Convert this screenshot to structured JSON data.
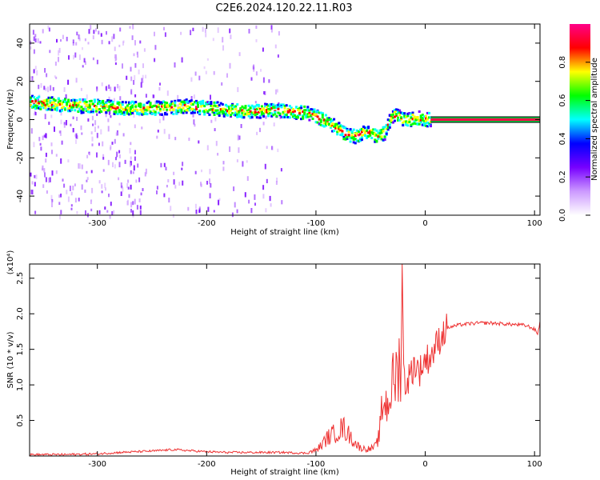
{
  "title": "C2E6.2024.120.22.11.R03",
  "chart_data": [
    {
      "type": "heatmap",
      "xlabel": "Height of straight line (km)",
      "ylabel": "Frequency (Hz)",
      "xlim": [
        -362,
        105
      ],
      "ylim": [
        -50,
        50
      ],
      "xticks": [
        -300,
        -200,
        -100,
        0,
        100
      ],
      "yticks": [
        -40,
        -20,
        0,
        20,
        40
      ],
      "grid": false,
      "ridge": {
        "x": [
          -360,
          -340,
          -320,
          -300,
          -280,
          -260,
          -240,
          -220,
          -200,
          -180,
          -160,
          -140,
          -120,
          -105,
          -95,
          -85,
          -75,
          -65,
          -55,
          -45,
          -38,
          -32,
          -28,
          -22,
          -15,
          -8,
          0,
          5,
          105
        ],
        "y": [
          9,
          8,
          7,
          7,
          6,
          6,
          6,
          7,
          6,
          5,
          4,
          5,
          4,
          3,
          0,
          -3,
          -7,
          -9,
          -6,
          -9,
          -7,
          1,
          3,
          0,
          0,
          1,
          0,
          0,
          0
        ]
      },
      "colorbar": {
        "label": "Normalized spectral amplitude",
        "range": [
          0.0,
          1.0
        ],
        "ticks": [
          0.0,
          0.2,
          0.4,
          0.6,
          0.8
        ],
        "colors": [
          "#ffffff",
          "#cc99ff",
          "#7700ff",
          "#0000ff",
          "#00ffff",
          "#00ff00",
          "#ffff00",
          "#ff0000",
          "#ff0088"
        ]
      }
    },
    {
      "type": "line",
      "xlabel": "Height of straight line (km)",
      "ylabel": "SNR (10 * v/v)",
      "yscale_label": "(x10⁴)",
      "xlim": [
        -362,
        105
      ],
      "ylim": [
        0,
        2.7
      ],
      "xticks": [
        -300,
        -200,
        -100,
        0,
        100
      ],
      "yticks": [
        0.5,
        1.0,
        1.5,
        2.0,
        2.5
      ],
      "color": "#ee3333",
      "series": [
        {
          "x": [
            -362,
            -330,
            -300,
            -280,
            -250,
            -230,
            -200,
            -180,
            -150,
            -130,
            -110,
            -100,
            -95,
            -90,
            -85,
            -80,
            -75,
            -70,
            -65,
            -60,
            -55,
            -50,
            -45,
            -42,
            -40,
            -38,
            -35,
            -32,
            -30,
            -28,
            -25,
            -22,
            -21,
            -20,
            -18,
            -15,
            -12,
            -10,
            -8,
            -5,
            -2,
            0,
            5,
            10,
            15,
            20,
            25,
            30,
            40,
            50,
            60,
            70,
            80,
            90,
            95,
            100,
            103,
            105
          ],
          "y": [
            0.02,
            0.02,
            0.03,
            0.05,
            0.07,
            0.09,
            0.06,
            0.05,
            0.05,
            0.05,
            0.04,
            0.08,
            0.15,
            0.25,
            0.3,
            0.35,
            0.4,
            0.3,
            0.2,
            0.12,
            0.1,
            0.1,
            0.14,
            0.3,
            0.6,
            0.8,
            0.7,
            0.9,
            1.0,
            1.1,
            1.2,
            1.4,
            2.7,
            1.2,
            1.0,
            1.1,
            1.2,
            1.3,
            1.25,
            1.2,
            1.3,
            1.35,
            1.4,
            1.55,
            1.7,
            1.8,
            1.82,
            1.84,
            1.86,
            1.87,
            1.87,
            1.86,
            1.85,
            1.84,
            1.82,
            1.78,
            1.72,
            1.9
          ]
        }
      ]
    }
  ]
}
